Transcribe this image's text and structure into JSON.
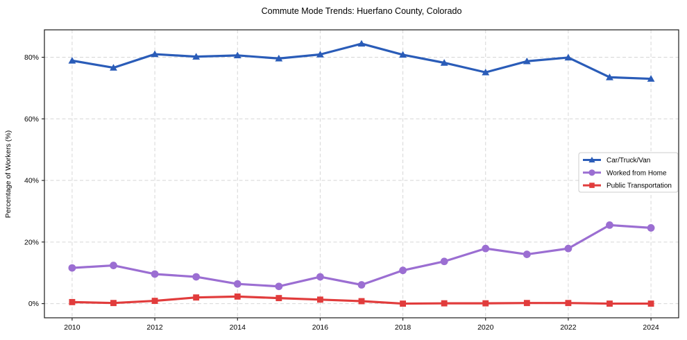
{
  "chart_data": {
    "type": "line",
    "title": "Commute Mode Trends: Huerfano County, Colorado",
    "xlabel": "",
    "ylabel": "Percentage of Workers (%)",
    "x": [
      2010,
      2011,
      2012,
      2013,
      2014,
      2015,
      2016,
      2017,
      2018,
      2019,
      2020,
      2021,
      2022,
      2023,
      2024
    ],
    "series": [
      {
        "name": "Car/Truck/Van",
        "color": "#2a5cb8",
        "marker": "triangle",
        "values": [
          78.9,
          76.6,
          81.0,
          80.2,
          80.6,
          79.6,
          80.9,
          84.4,
          80.8,
          78.2,
          75.1,
          78.7,
          79.9,
          73.5,
          73.0
        ]
      },
      {
        "name": "Worked from Home",
        "color": "#9b6ed2",
        "marker": "circle",
        "values": [
          11.6,
          12.4,
          9.6,
          8.7,
          6.4,
          5.6,
          8.7,
          6.1,
          10.8,
          13.7,
          17.9,
          16.0,
          17.9,
          25.5,
          24.6
        ]
      },
      {
        "name": "Public Transportation",
        "color": "#e13c3c",
        "marker": "square",
        "values": [
          0.5,
          0.2,
          0.9,
          2.0,
          2.3,
          1.8,
          1.3,
          0.8,
          0.0,
          0.1,
          0.1,
          0.2,
          0.2,
          0.0,
          0.0
        ]
      }
    ],
    "xticks": [
      2010,
      2012,
      2014,
      2016,
      2018,
      2020,
      2022,
      2024
    ],
    "yticks": [
      0,
      20,
      40,
      60,
      80
    ],
    "ytick_labels": [
      "0%",
      "20%",
      "40%",
      "60%",
      "80%"
    ],
    "xlim": [
      2009.33,
      2024.67
    ],
    "ylim": [
      -4.6,
      88.9
    ],
    "grid": true,
    "legend_position": "center right"
  },
  "style": {
    "background_color": "#ffffff",
    "grid_color": "#d6d6d6",
    "spine_color": "#1a1a1a",
    "legend_border_color": "#cccccc",
    "legend_fill_color": "#ffffff"
  }
}
